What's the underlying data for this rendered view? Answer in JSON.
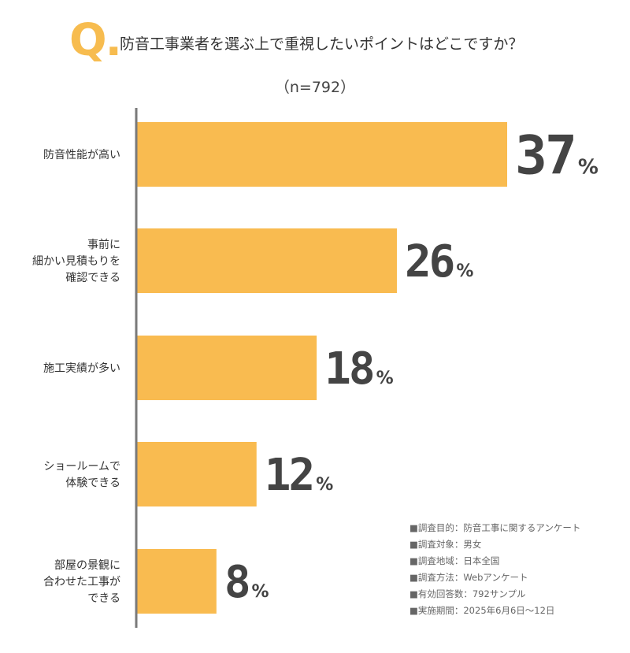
{
  "header": {
    "q_mark": "Q.",
    "question": "防音工事業者を選ぶ上で重視したいポイントはどこですか？",
    "sample_size": "（n=792）"
  },
  "chart_data": {
    "type": "bar",
    "orientation": "horizontal",
    "categories": [
      [
        "防音性能が高い"
      ],
      [
        "事前に",
        "細かい見積もりを",
        "確認できる"
      ],
      [
        "施工実績が多い"
      ],
      [
        "ショールームで",
        "体験できる"
      ],
      [
        "部屋の景観に",
        "合わせた工事が",
        "できる"
      ]
    ],
    "values": [
      37,
      26,
      18,
      12,
      8
    ],
    "value_suffix": "%",
    "bar_color": "#f9bb50",
    "axis_color": "#7a7a7a",
    "grid": false,
    "legend": "none"
  },
  "notes": [
    "■調査目的：防音工事に関するアンケート",
    "■調査対象：男女",
    "■調査地域：日本全国",
    "■調査方法：Webアンケート",
    "■有効回答数：792サンプル",
    "■実施期間：2025年6月6日〜12日"
  ]
}
